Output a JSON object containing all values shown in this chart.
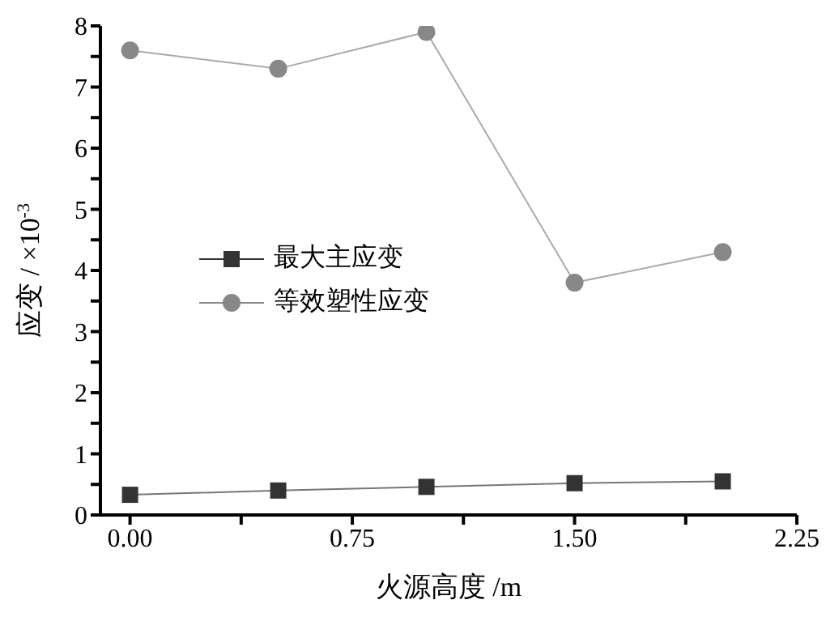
{
  "chart_data": {
    "type": "line",
    "xlabel": "火源高度 /m",
    "ylabel": "应变 / ×10$^{-3}$",
    "x": [
      0,
      0.5,
      1,
      1.5,
      2
    ],
    "series": [
      {
        "name": "最大主应变",
        "color": "#333333",
        "marker": "square",
        "values": [
          0.33,
          0.4,
          0.46,
          0.52,
          0.55
        ]
      },
      {
        "name": "等效塑性应变",
        "color": "#888888",
        "marker": "circle",
        "values": [
          7.6,
          7.3,
          7.9,
          3.8,
          4.3
        ]
      }
    ],
    "xlim": [
      -0.1,
      2.25
    ],
    "xticks": [
      {
        "value": 0,
        "label": "0.00"
      },
      {
        "value": 0.375,
        "label": null
      },
      {
        "value": 0.75,
        "label": "0.75"
      },
      {
        "value": 1.125,
        "label": null
      },
      {
        "value": 1.5,
        "label": "1.50"
      },
      {
        "value": 1.875,
        "label": null
      },
      {
        "value": 2.25,
        "label": "2.25"
      }
    ],
    "ylim": [
      0,
      8
    ],
    "yticks": [
      0,
      {
        "value": 0.5,
        "label": null
      },
      1,
      {
        "value": 1.5,
        "label": null
      },
      2,
      {
        "value": 2.5,
        "label": null
      },
      3,
      {
        "value": 3.5,
        "label": null
      },
      4,
      {
        "value": 4.5,
        "label": null
      },
      5,
      {
        "value": 5.5,
        "label": null
      },
      6,
      {
        "value": 6.5,
        "label": null
      },
      7,
      {
        "value": 7.5,
        "label": null
      },
      8
    ],
    "grid": false,
    "legend": "center left",
    "line_style": "solid"
  }
}
